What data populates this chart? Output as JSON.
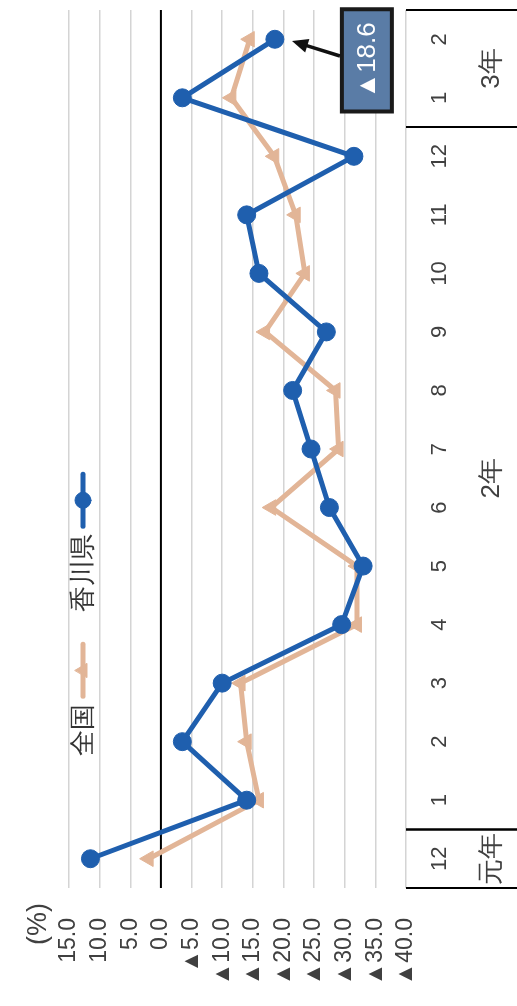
{
  "chart_data": {
    "type": "line",
    "orientation": "horizontal",
    "categories": [
      "2",
      "1",
      "12",
      "11",
      "10",
      "9",
      "8",
      "7",
      "6",
      "5",
      "4",
      "3",
      "2",
      "1",
      "12"
    ],
    "annotations": [
      "3年",
      "2年",
      "元年",
      "(%)",
      {
        "text": "▲18.6",
        "x": -18.6,
        "y": "2"
      }
    ],
    "series": [
      {
        "name": "全国",
        "color": "#e2b597",
        "marker": "triangle",
        "values": [
          -14.5,
          -11.5,
          -18.5,
          -22,
          -23.5,
          -17,
          -28.5,
          -29,
          -18,
          -32,
          -32,
          -13,
          -14,
          -16,
          2
        ]
      },
      {
        "name": "香川県",
        "color": "#1f5fae",
        "marker": "circle",
        "values": [
          -18.6,
          -3.5,
          -31.5,
          -14,
          -16,
          -27,
          -21.5,
          -24.5,
          -27.5,
          -33,
          -29.5,
          -10,
          -3.5,
          -14,
          11.5
        ]
      }
    ],
    "xlim": [
      15,
      -40
    ],
    "xticks": [
      {
        "value": 15,
        "label": "15.0"
      },
      {
        "value": 10,
        "label": "10.0"
      },
      {
        "value": 5,
        "label": "5.0"
      },
      {
        "value": 0,
        "label": "0.0"
      },
      {
        "value": -5,
        "label": "▲5.0"
      },
      {
        "value": -10,
        "label": "▲10.0"
      },
      {
        "value": -15,
        "label": "▲15.0"
      },
      {
        "value": -20,
        "label": "▲20.0"
      },
      {
        "value": -25,
        "label": "▲25.0"
      },
      {
        "value": -30,
        "label": "▲30.0"
      },
      {
        "value": -35,
        "label": "▲35.0"
      },
      {
        "value": -40,
        "label": "▲40.0"
      }
    ],
    "ref_lines": [
      {
        "axis": "x",
        "value": 0,
        "color": "#000000"
      }
    ],
    "grid": "x",
    "legend": "left",
    "line_style": "solid"
  }
}
